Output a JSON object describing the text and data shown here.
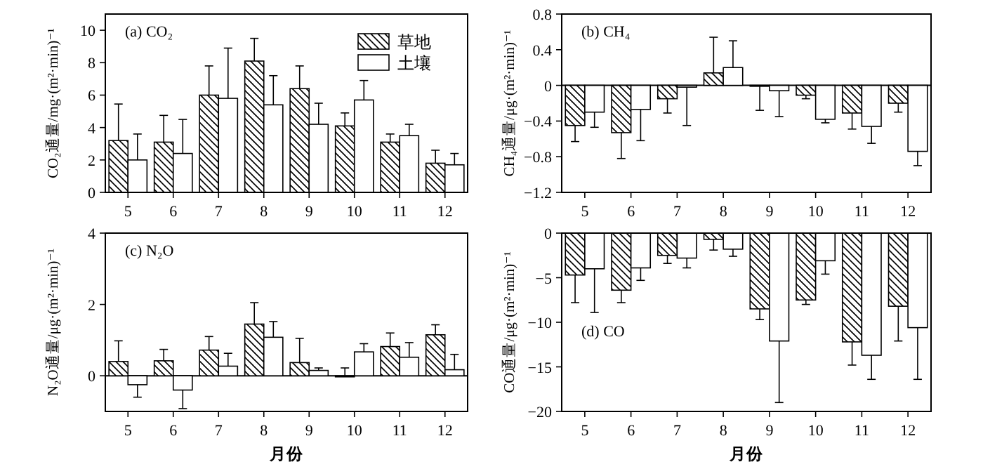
{
  "chart_data": [
    {
      "type": "bar",
      "title": "(a) CO₂",
      "ylabel": "CO₂通量/mg·(m²·min)⁻¹",
      "categories": [
        "5",
        "6",
        "7",
        "8",
        "9",
        "10",
        "11",
        "12"
      ],
      "ylim": [
        0,
        11
      ],
      "yticks": [
        0,
        2,
        4,
        6,
        8,
        10
      ],
      "legend": "top right",
      "tick_labels": "y",
      "series": [
        {
          "name": "草地",
          "color": "#000000",
          "values": [
            3.2,
            3.1,
            6.0,
            8.1,
            6.4,
            4.1,
            3.1,
            1.8
          ],
          "errors": [
            [
              3.2,
              5.45
            ],
            [
              3.1,
              4.75
            ],
            [
              6.0,
              7.8
            ],
            [
              8.1,
              9.5
            ],
            [
              6.4,
              7.8
            ],
            [
              4.1,
              4.9
            ],
            [
              3.1,
              3.6
            ],
            [
              1.8,
              2.6
            ]
          ]
        },
        {
          "name": "土壤",
          "color": "#ffffff",
          "values": [
            2.0,
            2.4,
            5.8,
            5.4,
            4.2,
            5.7,
            3.5,
            1.7
          ],
          "errors": [
            [
              2.0,
              3.6
            ],
            [
              2.4,
              4.5
            ],
            [
              5.8,
              8.9
            ],
            [
              5.4,
              7.2
            ],
            [
              4.2,
              5.5
            ],
            [
              5.7,
              6.9
            ],
            [
              3.5,
              4.2
            ],
            [
              1.7,
              2.4
            ]
          ]
        }
      ]
    },
    {
      "type": "bar",
      "title": "(b) CH₄",
      "ylabel": "CH₄通量/μg·(m²·min)⁻¹",
      "categories": [
        "5",
        "6",
        "7",
        "8",
        "9",
        "10",
        "11",
        "12"
      ],
      "ylim": [
        -1.2,
        0.8
      ],
      "yticks": [
        -1.2,
        -0.8,
        -0.4,
        0,
        0.4,
        0.8
      ],
      "tick_labels": "y",
      "series": [
        {
          "color": "#000000",
          "values": [
            -0.45,
            -0.53,
            -0.15,
            0.14,
            -0.01,
            -0.11,
            -0.31,
            -0.2
          ],
          "errors": [
            [
              -0.63,
              -0.45
            ],
            [
              -0.82,
              -0.53
            ],
            [
              -0.31,
              -0.15
            ],
            [
              0.14,
              0.54
            ],
            [
              -0.28,
              -0.01
            ],
            [
              -0.15,
              -0.11
            ],
            [
              -0.49,
              -0.31
            ],
            [
              -0.3,
              -0.2
            ]
          ]
        },
        {
          "color": "#ffffff",
          "values": [
            -0.3,
            -0.27,
            -0.02,
            0.2,
            -0.06,
            -0.38,
            -0.46,
            -0.74
          ],
          "errors": [
            [
              -0.47,
              -0.3
            ],
            [
              -0.62,
              -0.27
            ],
            [
              -0.45,
              -0.02
            ],
            [
              0.2,
              0.5
            ],
            [
              -0.35,
              -0.06
            ],
            [
              -0.42,
              -0.38
            ],
            [
              -0.65,
              -0.46
            ],
            [
              -0.9,
              -0.74
            ]
          ]
        }
      ]
    },
    {
      "type": "bar",
      "title": "(c) N₂O",
      "ylabel": "N₂O通量/μg·(m²·min)⁻¹",
      "xlabel": "月份",
      "categories": [
        "5",
        "6",
        "7",
        "8",
        "9",
        "10",
        "11",
        "12"
      ],
      "ylim": [
        -1,
        4
      ],
      "yticks": [
        0,
        2,
        4
      ],
      "series": [
        {
          "color": "#000000",
          "values": [
            0.4,
            0.42,
            0.72,
            1.45,
            0.37,
            -0.03,
            0.82,
            1.15
          ],
          "errors": [
            [
              0.4,
              0.98
            ],
            [
              0.42,
              0.74
            ],
            [
              0.72,
              1.1
            ],
            [
              1.45,
              2.05
            ],
            [
              0.37,
              1.05
            ],
            [
              -0.03,
              0.22
            ],
            [
              0.82,
              1.2
            ],
            [
              1.15,
              1.43
            ]
          ]
        },
        {
          "color": "#ffffff",
          "values": [
            -0.25,
            -0.4,
            0.27,
            1.08,
            0.15,
            0.67,
            0.52,
            0.17
          ],
          "errors": [
            [
              -0.6,
              -0.25
            ],
            [
              -0.92,
              -0.4
            ],
            [
              0.27,
              0.63
            ],
            [
              1.08,
              1.52
            ],
            [
              0.15,
              0.22
            ],
            [
              0.67,
              0.9
            ],
            [
              0.52,
              0.93
            ],
            [
              0.17,
              0.6
            ]
          ]
        }
      ]
    },
    {
      "type": "bar",
      "title": "(d) CO",
      "ylabel": "CO通量/μg·(m²·min)⁻¹",
      "xlabel": "月份",
      "categories": [
        "5",
        "6",
        "7",
        "8",
        "9",
        "10",
        "11",
        "12"
      ],
      "ylim": [
        -20,
        0
      ],
      "yticks": [
        -20,
        -15,
        -10,
        -5,
        0
      ],
      "series": [
        {
          "color": "#000000",
          "values": [
            -4.7,
            -6.4,
            -2.5,
            -0.7,
            -8.5,
            -7.5,
            -12.2,
            -8.2
          ],
          "errors": [
            [
              -7.8,
              -4.7
            ],
            [
              -7.8,
              -6.4
            ],
            [
              -3.4,
              -2.5
            ],
            [
              -1.9,
              -0.7
            ],
            [
              -9.7,
              -8.5
            ],
            [
              -8.0,
              -7.5
            ],
            [
              -14.8,
              -12.2
            ],
            [
              -12.1,
              -8.2
            ]
          ]
        },
        {
          "color": "#ffffff",
          "values": [
            -4.0,
            -3.9,
            -2.8,
            -1.8,
            -12.1,
            -3.1,
            -13.7,
            -10.6
          ],
          "errors": [
            [
              -8.9,
              -4.0
            ],
            [
              -5.3,
              -3.9
            ],
            [
              -3.9,
              -2.8
            ],
            [
              -2.6,
              -1.8
            ],
            [
              -19.0,
              -12.1
            ],
            [
              -4.6,
              -3.1
            ],
            [
              -16.4,
              -13.7
            ],
            [
              -16.4,
              -10.6
            ]
          ]
        }
      ]
    }
  ]
}
